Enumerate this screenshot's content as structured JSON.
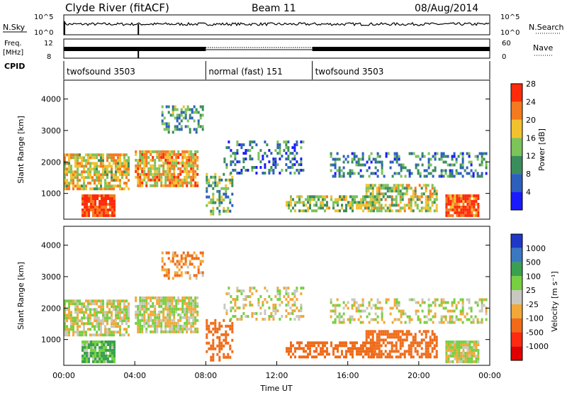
{
  "header": {
    "station": "Clyde River (fitACF)",
    "beam": "Beam 11",
    "date": "08/Aug/2014"
  },
  "top_panels": {
    "nsky_label": "N.Sky",
    "nsky_ticks": [
      "10^5",
      "10^0"
    ],
    "nsearch_label": "N.Search",
    "nsearch_ticks": [
      "10^5",
      "10^0"
    ],
    "freq_label": "Freq.",
    "freq_unit": "[MHz]",
    "freq_ticks": [
      "12",
      "8"
    ],
    "nave_label": "Nave",
    "nave_ticks": [
      "60",
      "0"
    ],
    "cpid_label": "CPID"
  },
  "cpid_segments": [
    {
      "name": "twofsound 3503",
      "start_h": 0,
      "end_h": 8
    },
    {
      "name": "normal (fast) 151",
      "start_h": 8,
      "end_h": 14
    },
    {
      "name": "twofsound 3503",
      "start_h": 14,
      "end_h": 24
    }
  ],
  "chart_data": [
    {
      "type": "heatmap",
      "quantity": "power",
      "xlabel": "",
      "ylabel": "Slant Range [km]",
      "xlim": [
        0,
        24
      ],
      "ylim": [
        180,
        4600
      ],
      "yticks": [
        1000,
        2000,
        3000,
        4000
      ],
      "colorbar": {
        "label": "Power [dB]",
        "ticks": [
          4,
          8,
          12,
          16,
          20,
          24,
          28
        ],
        "range": [
          0,
          32
        ],
        "colors": [
          "#1a1aff",
          "#2d5fbd",
          "#3a8d5c",
          "#7cc35a",
          "#f2c12e",
          "#f47a1f",
          "#ff2a0a"
        ]
      }
    },
    {
      "type": "heatmap",
      "quantity": "velocity",
      "xlabel": "Time UT",
      "ylabel": "Slant Range [km]",
      "xlim": [
        0,
        24
      ],
      "ylim": [
        180,
        4600
      ],
      "yticks": [
        1000,
        2000,
        3000,
        4000
      ],
      "xticks": [
        "00:00",
        "04:00",
        "08:00",
        "12:00",
        "16:00",
        "20:00",
        "00:00"
      ],
      "colorbar": {
        "label": "Velocity [m s⁻¹]",
        "ticks": [
          "1000",
          "500",
          "100",
          "25",
          "-25",
          "-100",
          "-500",
          "-1000"
        ],
        "colors": [
          "#2038c8",
          "#3a78c0",
          "#3aa050",
          "#76d040",
          "#c8c8c0",
          "#f2a838",
          "#f06a18",
          "#ff2a10",
          "#e00000"
        ]
      }
    }
  ],
  "scatter_regions": [
    {
      "t0": 0.0,
      "t1": 3.6,
      "r0": 1100,
      "r1": 2200,
      "pw": 20,
      "vel": 0,
      "dens": 0.75
    },
    {
      "t0": 1.0,
      "t1": 2.8,
      "r0": 250,
      "r1": 900,
      "pw": 30,
      "vel": 100,
      "dens": 0.95
    },
    {
      "t0": 4.0,
      "t1": 7.5,
      "r0": 1200,
      "r1": 2300,
      "pw": 22,
      "vel": 0,
      "dens": 0.8
    },
    {
      "t0": 5.5,
      "t1": 7.8,
      "r0": 2900,
      "r1": 3800,
      "pw": 12,
      "vel": -100,
      "dens": 0.4
    },
    {
      "t0": 8.0,
      "t1": 9.5,
      "r0": 300,
      "r1": 1600,
      "pw": 14,
      "vel": -300,
      "dens": 0.45
    },
    {
      "t0": 9.0,
      "t1": 13.5,
      "r0": 1600,
      "r1": 2600,
      "pw": 8,
      "vel": 0,
      "dens": 0.35
    },
    {
      "t0": 12.5,
      "t1": 17.5,
      "r0": 400,
      "r1": 900,
      "pw": 16,
      "vel": -300,
      "dens": 0.6
    },
    {
      "t0": 17.0,
      "t1": 21.0,
      "r0": 400,
      "r1": 1300,
      "pw": 18,
      "vel": -400,
      "dens": 0.65
    },
    {
      "t0": 21.5,
      "t1": 23.3,
      "r0": 250,
      "r1": 900,
      "pw": 28,
      "vel": 0,
      "dens": 0.9
    },
    {
      "t0": 15.0,
      "t1": 23.8,
      "r0": 1500,
      "r1": 2300,
      "pw": 10,
      "vel": 0,
      "dens": 0.35
    }
  ]
}
